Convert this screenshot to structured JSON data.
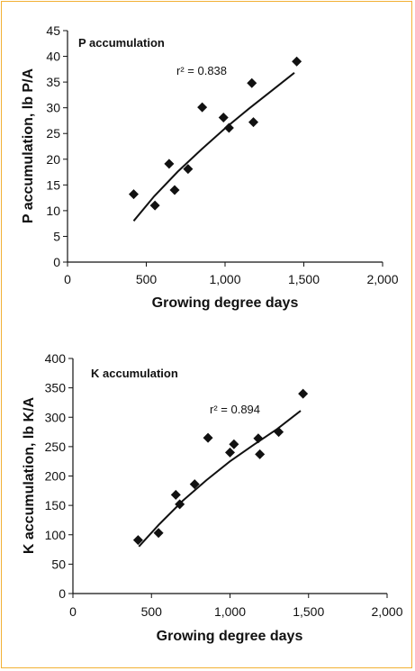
{
  "chart_data": [
    {
      "type": "scatter",
      "title": "P accumulation",
      "xlabel": "Growing degree days",
      "ylabel": "P accumulation, lb P/A",
      "xlim": [
        0,
        2000
      ],
      "ylim": [
        0,
        45
      ],
      "xticks": [
        0,
        500,
        1000,
        1500,
        2000
      ],
      "xtick_labels": [
        "0",
        "500",
        "1,000",
        "1,500",
        "2,000"
      ],
      "yticks": [
        0,
        5,
        10,
        15,
        20,
        25,
        30,
        35,
        40,
        45
      ],
      "ytick_labels": [
        "0",
        "5",
        "10",
        "15",
        "20",
        "25",
        "30",
        "35",
        "40",
        "45"
      ],
      "annotation": "r² = 0.838",
      "grid": false,
      "points": [
        {
          "x": 420,
          "y": 13.2
        },
        {
          "x": 555,
          "y": 11.0
        },
        {
          "x": 645,
          "y": 19.1
        },
        {
          "x": 680,
          "y": 14.0
        },
        {
          "x": 765,
          "y": 18.1
        },
        {
          "x": 855,
          "y": 30.1
        },
        {
          "x": 990,
          "y": 28.1
        },
        {
          "x": 1025,
          "y": 26.1
        },
        {
          "x": 1170,
          "y": 34.8
        },
        {
          "x": 1180,
          "y": 27.2
        },
        {
          "x": 1455,
          "y": 39.0
        }
      ],
      "trendline": [
        {
          "x": 420,
          "y": 8.0
        },
        {
          "x": 550,
          "y": 12.8
        },
        {
          "x": 700,
          "y": 17.6
        },
        {
          "x": 850,
          "y": 21.9
        },
        {
          "x": 1000,
          "y": 26.0
        },
        {
          "x": 1150,
          "y": 29.8
        },
        {
          "x": 1300,
          "y": 33.4
        },
        {
          "x": 1440,
          "y": 36.8
        }
      ]
    },
    {
      "type": "scatter",
      "title": "K accumulation",
      "xlabel": "Growing degree days",
      "ylabel": "K accumulation, lb K/A",
      "xlim": [
        0,
        2000
      ],
      "ylim": [
        0,
        400
      ],
      "xticks": [
        0,
        500,
        1000,
        1500,
        2000
      ],
      "xtick_labels": [
        "0",
        "500",
        "1,000",
        "1,500",
        "2,000"
      ],
      "yticks": [
        0,
        50,
        100,
        150,
        200,
        250,
        300,
        350,
        400
      ],
      "ytick_labels": [
        "0",
        "50",
        "100",
        "150",
        "200",
        "250",
        "300",
        "350",
        "400"
      ],
      "annotation": "r² = 0.894",
      "grid": false,
      "points": [
        {
          "x": 415,
          "y": 91
        },
        {
          "x": 545,
          "y": 103
        },
        {
          "x": 655,
          "y": 168
        },
        {
          "x": 680,
          "y": 152
        },
        {
          "x": 775,
          "y": 186
        },
        {
          "x": 860,
          "y": 265
        },
        {
          "x": 1000,
          "y": 240
        },
        {
          "x": 1025,
          "y": 254
        },
        {
          "x": 1180,
          "y": 264
        },
        {
          "x": 1190,
          "y": 237
        },
        {
          "x": 1310,
          "y": 275
        },
        {
          "x": 1465,
          "y": 340
        }
      ],
      "trendline": [
        {
          "x": 420,
          "y": 80
        },
        {
          "x": 550,
          "y": 118
        },
        {
          "x": 700,
          "y": 158
        },
        {
          "x": 850,
          "y": 193
        },
        {
          "x": 1000,
          "y": 225
        },
        {
          "x": 1150,
          "y": 253
        },
        {
          "x": 1300,
          "y": 280
        },
        {
          "x": 1450,
          "y": 311
        }
      ]
    }
  ]
}
